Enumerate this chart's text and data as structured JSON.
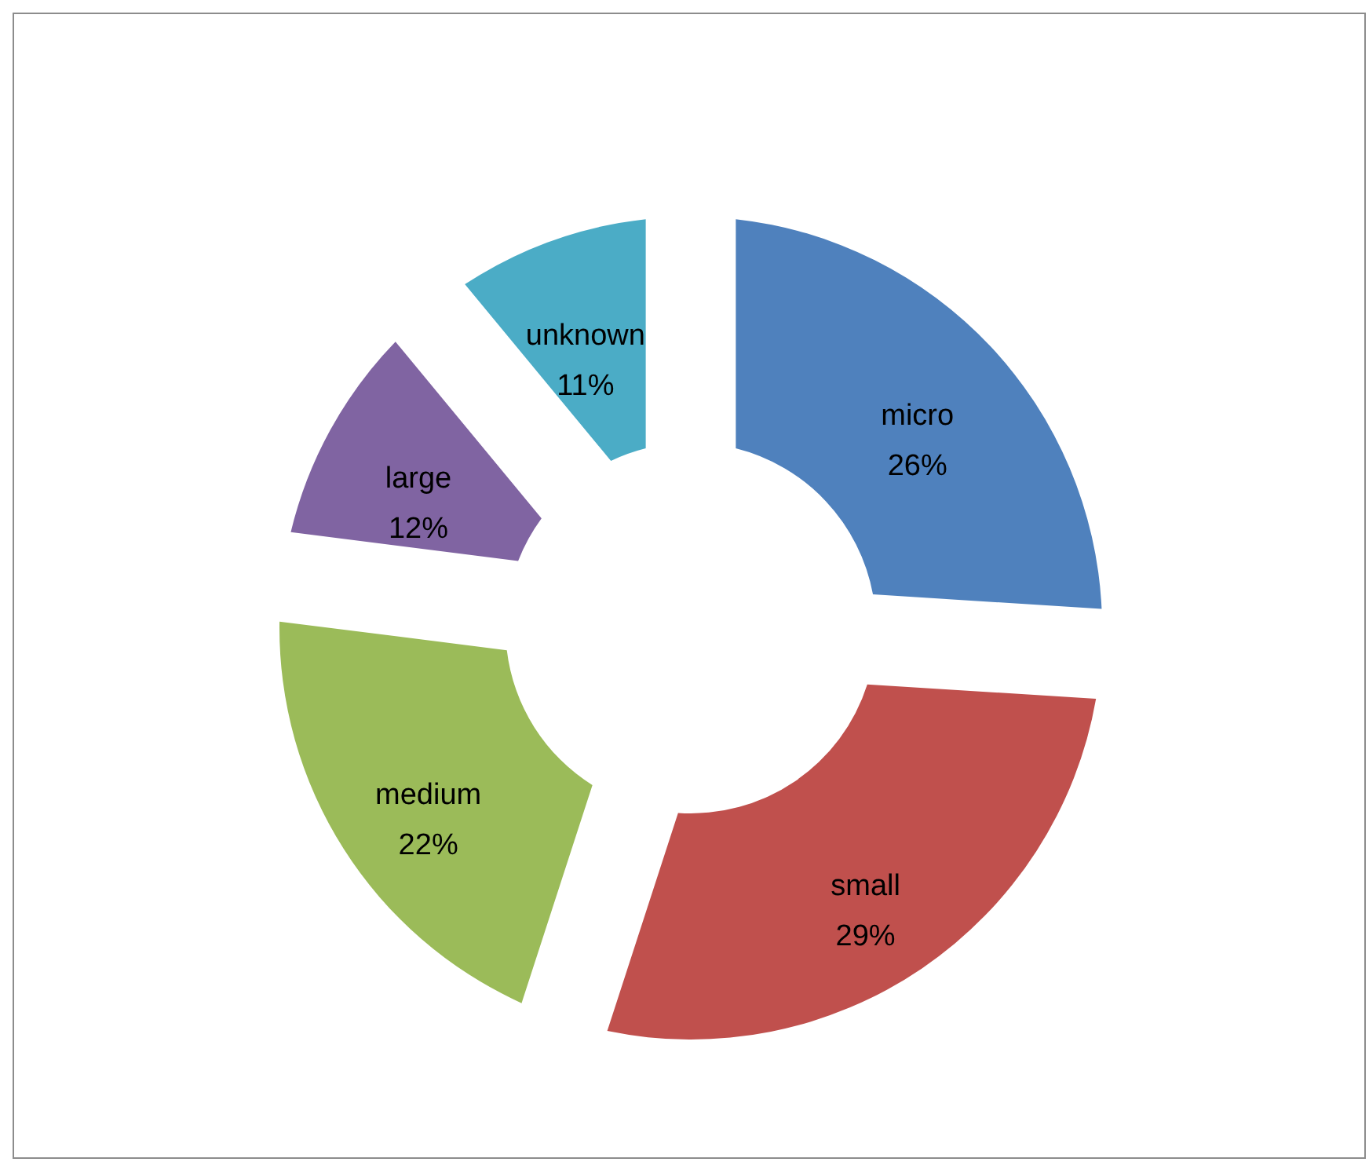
{
  "chart_data": {
    "type": "donut",
    "categories": [
      "micro",
      "small",
      "medium",
      "large",
      "unknown"
    ],
    "values": [
      26,
      29,
      22,
      12,
      11
    ],
    "value_labels": [
      "26%",
      "29%",
      "22%",
      "12%",
      "11%"
    ],
    "colors": [
      "#4f81bd",
      "#c0504d",
      "#9bbb59",
      "#8064a2",
      "#4bacc6"
    ]
  }
}
